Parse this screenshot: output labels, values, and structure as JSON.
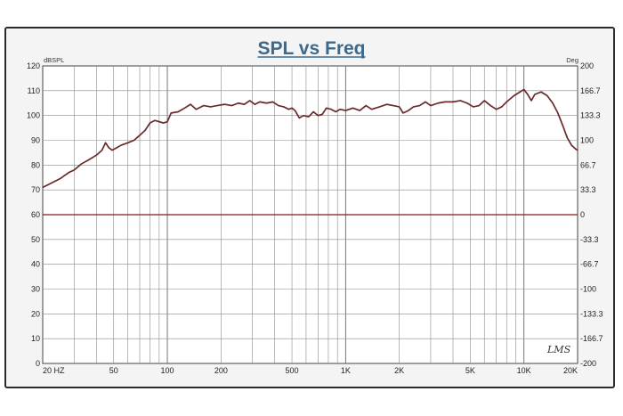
{
  "chart_data": {
    "type": "line",
    "title": "SPL vs Freq",
    "left_unit": "dBSPL",
    "right_unit": "Deg",
    "logo": "LMS",
    "x_scale": "log",
    "xlim": [
      20,
      20000
    ],
    "ylim": [
      0,
      120
    ],
    "y2lim": [
      -200,
      200
    ],
    "grid": true,
    "x_ticks": [
      {
        "value": 20,
        "label": "20 HZ"
      },
      {
        "value": 50,
        "label": "50"
      },
      {
        "value": 100,
        "label": "100"
      },
      {
        "value": 200,
        "label": "200"
      },
      {
        "value": 500,
        "label": "500"
      },
      {
        "value": 1000,
        "label": "1K"
      },
      {
        "value": 2000,
        "label": "2K"
      },
      {
        "value": 5000,
        "label": "5K"
      },
      {
        "value": 10000,
        "label": "10K"
      },
      {
        "value": 20000,
        "label": "20K"
      }
    ],
    "y_ticks": [
      "0",
      "10",
      "20",
      "30",
      "40",
      "50",
      "60",
      "70",
      "80",
      "90",
      "100",
      "110",
      "120"
    ],
    "y2_ticks": [
      "-200",
      "-166.7",
      "-133.3",
      "-100",
      "-66.7",
      "-33.3",
      "0",
      "33.3",
      "66.7",
      "100",
      "133.3",
      "166.7",
      "200"
    ],
    "series": [
      {
        "color": "#6b2a2a",
        "points": [
          [
            20,
            71
          ],
          [
            22,
            72.5
          ],
          [
            25,
            74.5
          ],
          [
            28,
            77
          ],
          [
            30,
            78
          ],
          [
            33,
            80.5
          ],
          [
            36,
            82
          ],
          [
            40,
            84
          ],
          [
            43,
            86
          ],
          [
            45,
            89
          ],
          [
            47,
            87
          ],
          [
            49,
            86
          ],
          [
            52,
            87
          ],
          [
            55,
            88
          ],
          [
            60,
            89
          ],
          [
            65,
            90
          ],
          [
            70,
            92
          ],
          [
            75,
            94
          ],
          [
            80,
            97
          ],
          [
            85,
            98
          ],
          [
            90,
            97.5
          ],
          [
            95,
            97
          ],
          [
            100,
            97.5
          ],
          [
            105,
            101
          ],
          [
            115,
            101.5
          ],
          [
            125,
            103
          ],
          [
            135,
            104.5
          ],
          [
            145,
            102.5
          ],
          [
            160,
            104
          ],
          [
            175,
            103.5
          ],
          [
            190,
            104
          ],
          [
            210,
            104.5
          ],
          [
            230,
            104
          ],
          [
            250,
            105
          ],
          [
            270,
            104.5
          ],
          [
            290,
            106
          ],
          [
            310,
            104.5
          ],
          [
            330,
            105.5
          ],
          [
            360,
            105
          ],
          [
            390,
            105.5
          ],
          [
            420,
            104
          ],
          [
            450,
            103.5
          ],
          [
            480,
            102.5
          ],
          [
            500,
            103
          ],
          [
            520,
            102
          ],
          [
            550,
            99
          ],
          [
            580,
            100
          ],
          [
            620,
            99.5
          ],
          [
            660,
            101.5
          ],
          [
            700,
            100
          ],
          [
            740,
            100.5
          ],
          [
            780,
            103
          ],
          [
            830,
            102.5
          ],
          [
            880,
            101.5
          ],
          [
            930,
            102.5
          ],
          [
            1000,
            102
          ],
          [
            1100,
            103
          ],
          [
            1200,
            102
          ],
          [
            1300,
            104
          ],
          [
            1400,
            102.5
          ],
          [
            1550,
            103.5
          ],
          [
            1700,
            104.5
          ],
          [
            1850,
            104
          ],
          [
            2000,
            103.5
          ],
          [
            2100,
            101
          ],
          [
            2250,
            102
          ],
          [
            2400,
            103.5
          ],
          [
            2600,
            104
          ],
          [
            2800,
            105.5
          ],
          [
            3000,
            104
          ],
          [
            3300,
            105
          ],
          [
            3600,
            105.5
          ],
          [
            4000,
            105.5
          ],
          [
            4400,
            106
          ],
          [
            4800,
            105
          ],
          [
            5200,
            103.5
          ],
          [
            5600,
            104
          ],
          [
            6000,
            106
          ],
          [
            6500,
            104
          ],
          [
            7000,
            102.5
          ],
          [
            7500,
            103.5
          ],
          [
            8000,
            105.5
          ],
          [
            8800,
            108
          ],
          [
            9500,
            109.5
          ],
          [
            10000,
            110.5
          ],
          [
            10500,
            108.5
          ],
          [
            11000,
            106
          ],
          [
            11500,
            108.5
          ],
          [
            12500,
            109.5
          ],
          [
            13500,
            108
          ],
          [
            14500,
            105
          ],
          [
            15500,
            101
          ],
          [
            16500,
            96
          ],
          [
            17500,
            91
          ],
          [
            18500,
            88
          ],
          [
            19500,
            86.5
          ],
          [
            20000,
            86
          ]
        ]
      },
      {
        "color": "#8b1818",
        "points": [
          [
            20,
            60
          ],
          [
            20000,
            60
          ]
        ]
      }
    ]
  }
}
